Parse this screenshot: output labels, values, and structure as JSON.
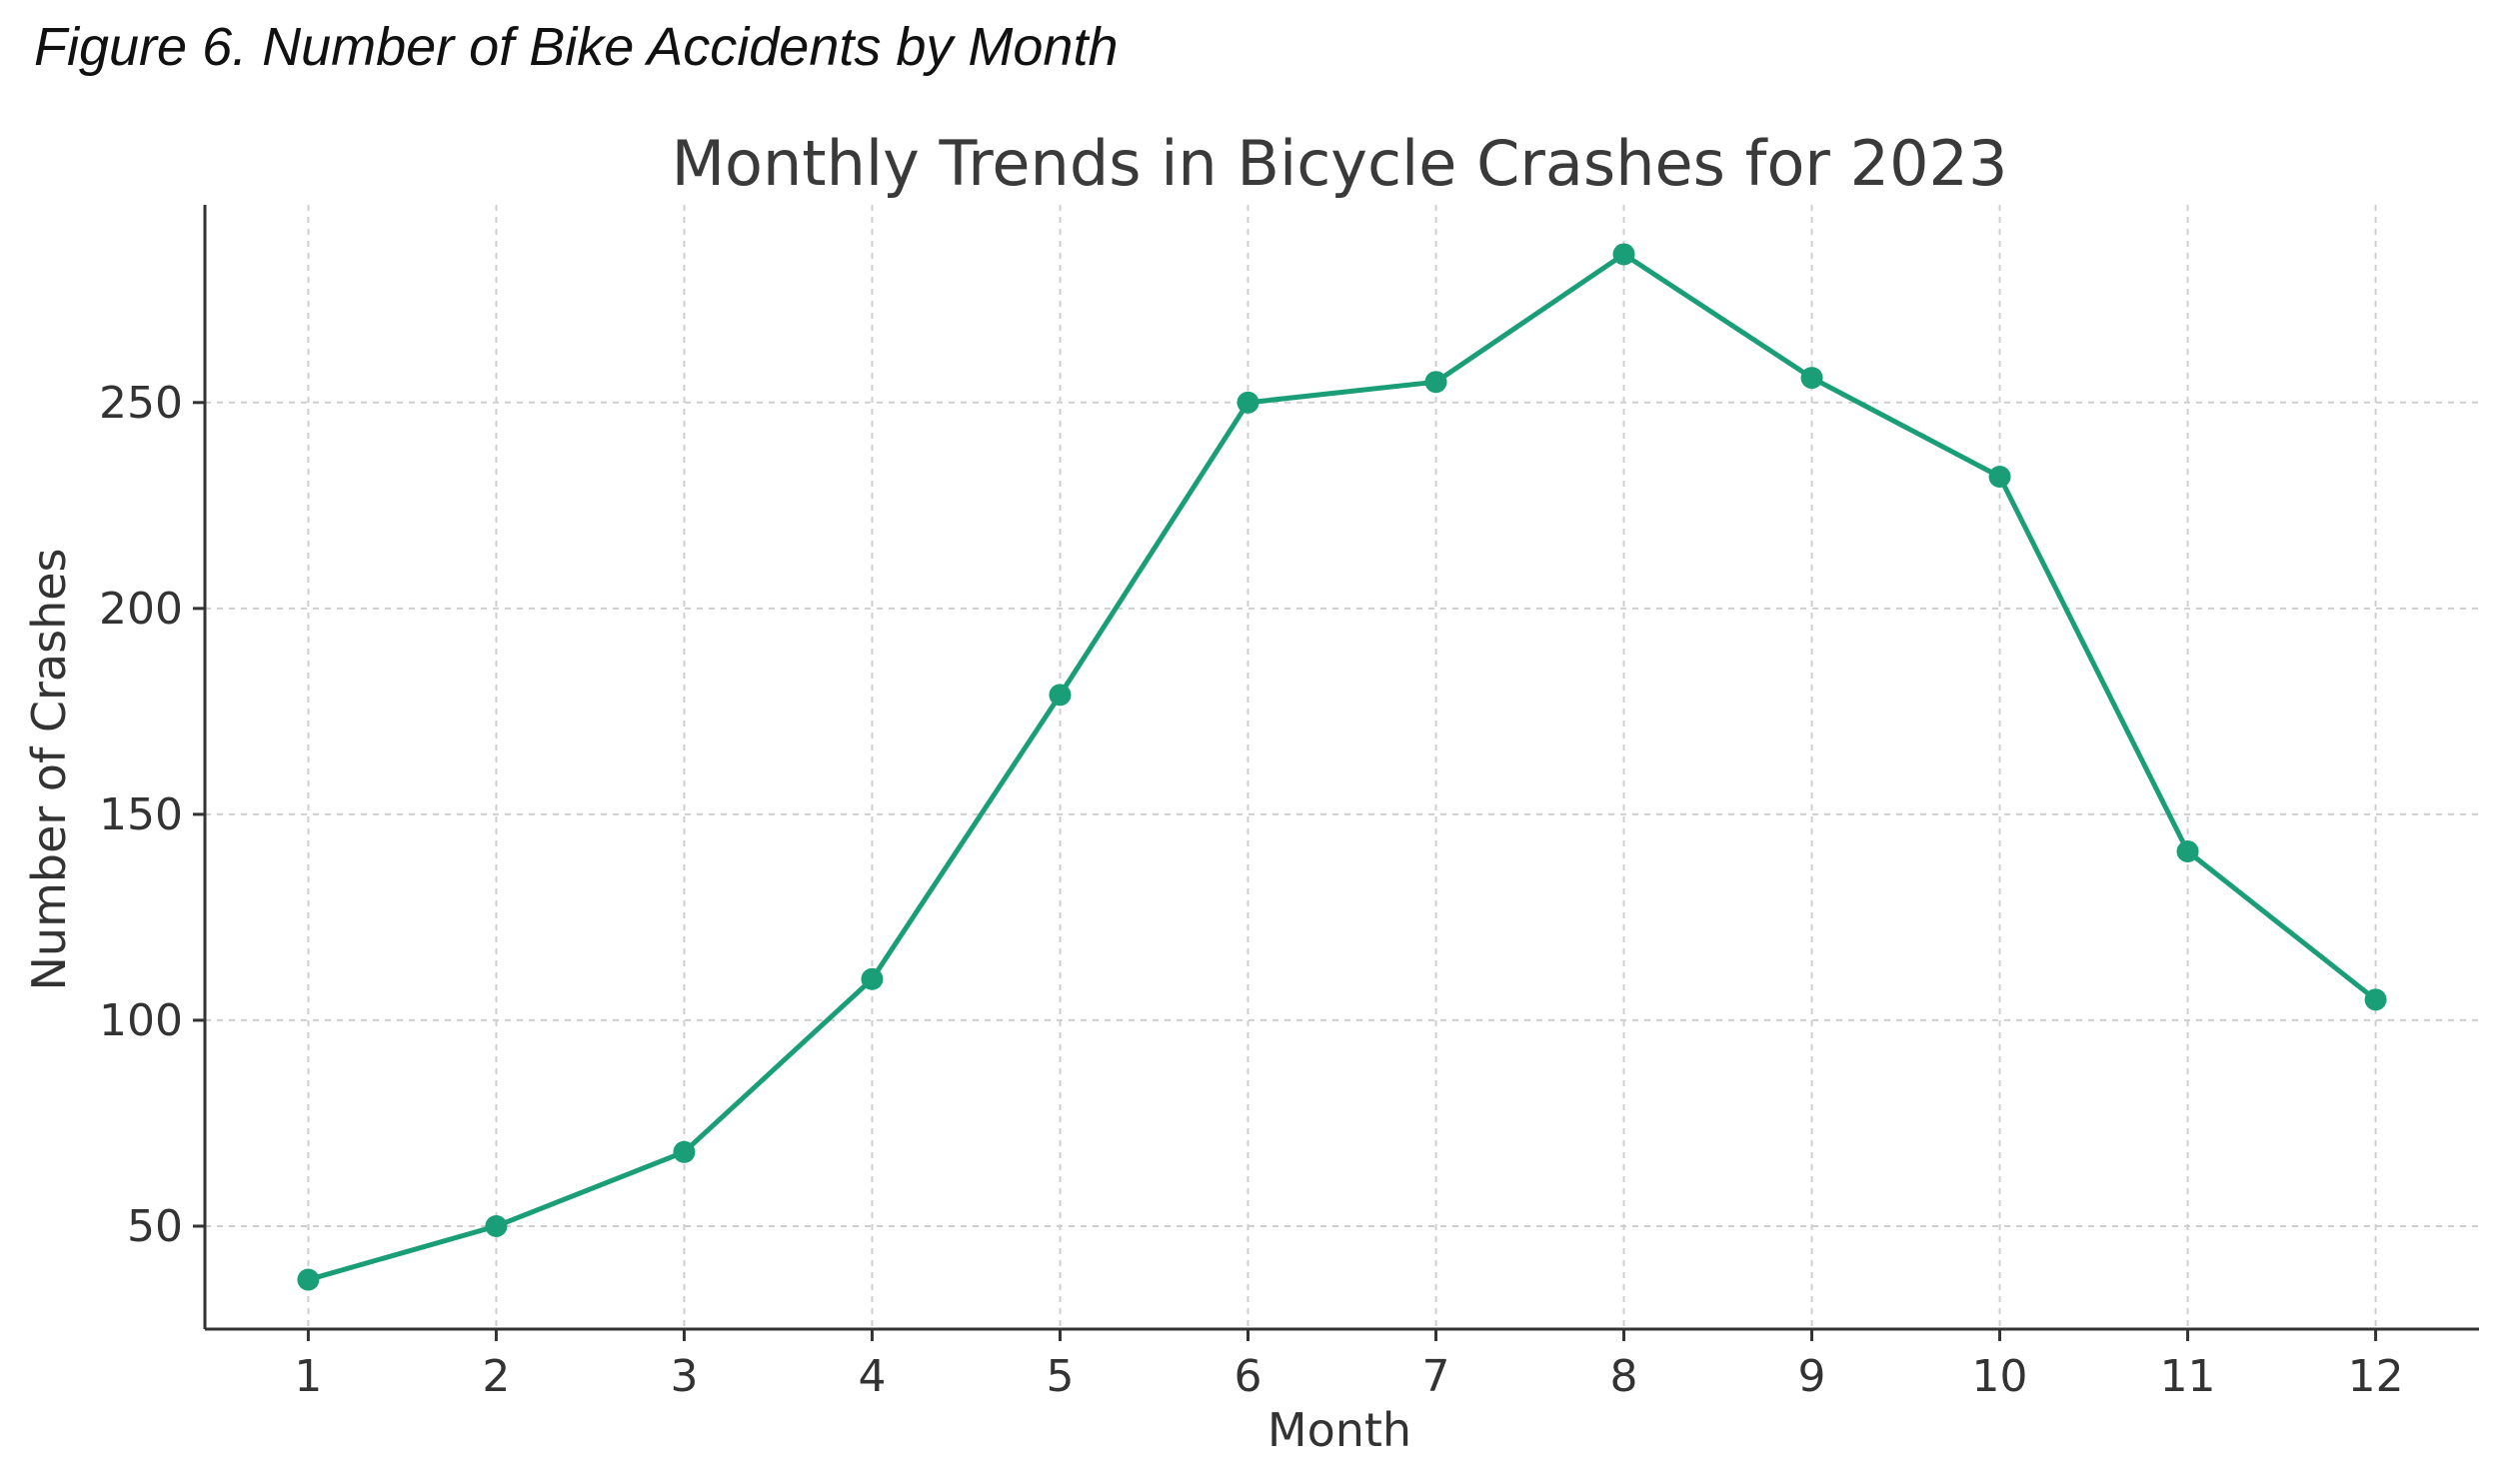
{
  "figure_caption": "Figure 6. Number of Bike Accidents by Month",
  "chart_data": {
    "type": "line",
    "title": "Monthly Trends in Bicycle Crashes for 2023",
    "xlabel": "Month",
    "ylabel": "Number of Crashes",
    "x": [
      1,
      2,
      3,
      4,
      5,
      6,
      7,
      8,
      9,
      10,
      11,
      12
    ],
    "values": [
      37,
      50,
      68,
      110,
      179,
      250,
      255,
      286,
      256,
      232,
      141,
      105
    ],
    "xticks": [
      "1",
      "2",
      "3",
      "4",
      "5",
      "6",
      "7",
      "8",
      "9",
      "10",
      "11",
      "12"
    ],
    "yticks": [
      50,
      100,
      150,
      200,
      250
    ],
    "xlim": [
      0.45,
      12.55
    ],
    "ylim": [
      25,
      298
    ],
    "grid": true,
    "line_color": "#1a9e77",
    "marker": "circle"
  }
}
